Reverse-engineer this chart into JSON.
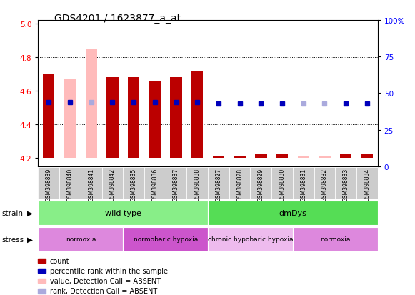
{
  "title": "GDS4201 / 1623877_a_at",
  "samples": [
    "GSM398839",
    "GSM398840",
    "GSM398841",
    "GSM398842",
    "GSM398835",
    "GSM398836",
    "GSM398837",
    "GSM398838",
    "GSM398827",
    "GSM398828",
    "GSM398829",
    "GSM398830",
    "GSM398831",
    "GSM398832",
    "GSM398833",
    "GSM398834"
  ],
  "ylim_left": [
    4.15,
    5.02
  ],
  "ylim_right": [
    0,
    100
  ],
  "yticks_left": [
    4.2,
    4.4,
    4.6,
    4.8,
    5.0
  ],
  "yticks_right": [
    0,
    25,
    50,
    75,
    100
  ],
  "bar_values": [
    4.7,
    4.67,
    4.845,
    4.68,
    4.68,
    4.66,
    4.68,
    4.72,
    4.215,
    4.215,
    4.225,
    4.225,
    4.21,
    4.21,
    4.22,
    4.22
  ],
  "bar_absent": [
    false,
    true,
    true,
    false,
    false,
    false,
    false,
    false,
    false,
    false,
    false,
    false,
    true,
    true,
    false,
    false
  ],
  "bar_colors_present": "#bb0000",
  "bar_colors_absent": "#ffbbbb",
  "bar_bottom": 4.2,
  "percentile_values": [
    44,
    44,
    44,
    44,
    44,
    44,
    44,
    44,
    43,
    43,
    43,
    43,
    43,
    43,
    43,
    43
  ],
  "percentile_absent": [
    false,
    false,
    true,
    false,
    false,
    false,
    false,
    false,
    false,
    false,
    false,
    false,
    true,
    true,
    false,
    false
  ],
  "percentile_color_present": "#0000bb",
  "percentile_color_absent": "#aaaadd",
  "strain_groups": [
    {
      "label": "wild type",
      "start": 0,
      "end": 8,
      "color": "#88ee88"
    },
    {
      "label": "dmDys",
      "start": 8,
      "end": 16,
      "color": "#55dd55"
    }
  ],
  "stress_groups": [
    {
      "label": "normoxia",
      "start": 0,
      "end": 4,
      "color": "#dd88dd"
    },
    {
      "label": "normobaric hypoxia",
      "start": 4,
      "end": 8,
      "color": "#cc55cc"
    },
    {
      "label": "chronic hypobaric hypoxia",
      "start": 8,
      "end": 12,
      "color": "#eebbee"
    },
    {
      "label": "normoxia",
      "start": 12,
      "end": 16,
      "color": "#dd88dd"
    }
  ],
  "legend_items": [
    {
      "label": "count",
      "color": "#bb0000"
    },
    {
      "label": "percentile rank within the sample",
      "color": "#0000bb"
    },
    {
      "label": "value, Detection Call = ABSENT",
      "color": "#ffbbbb"
    },
    {
      "label": "rank, Detection Call = ABSENT",
      "color": "#aaaadd"
    }
  ],
  "bg_color": "#ffffff",
  "sample_bg_color": "#cccccc"
}
